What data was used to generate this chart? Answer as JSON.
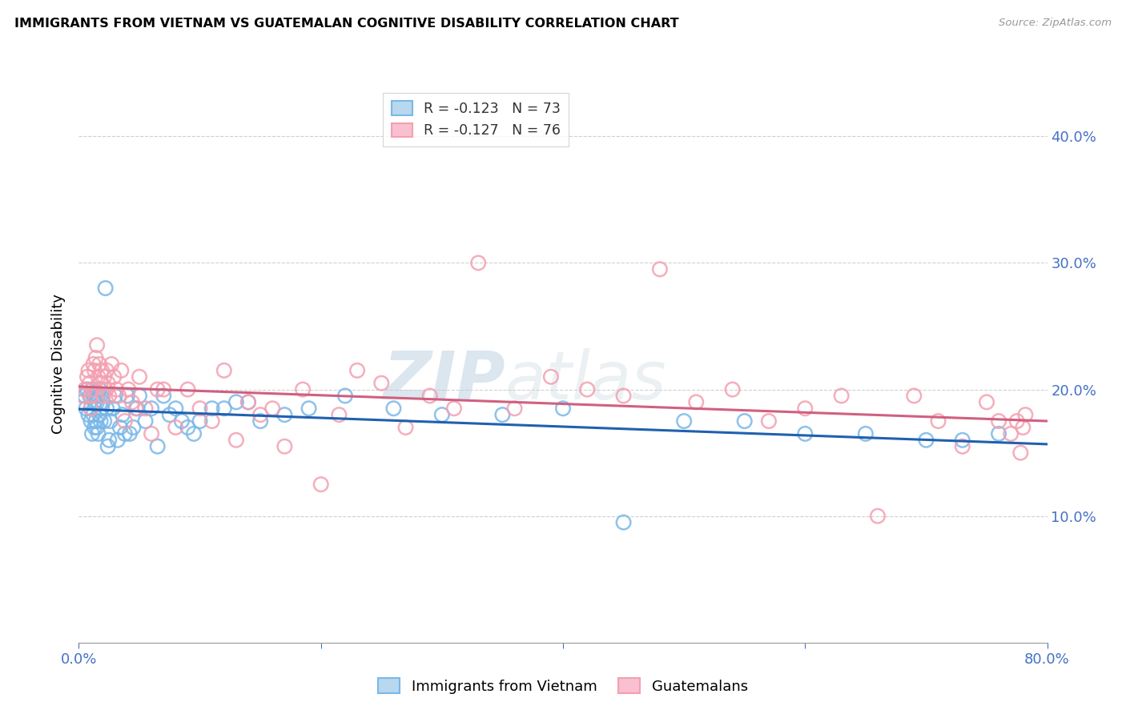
{
  "title": "IMMIGRANTS FROM VIETNAM VS GUATEMALAN COGNITIVE DISABILITY CORRELATION CHART",
  "source": "Source: ZipAtlas.com",
  "ylabel": "Cognitive Disability",
  "series1_label": "Immigrants from Vietnam",
  "series2_label": "Guatemalans",
  "series1_color": "#7ab8e8",
  "series2_color": "#f4a0b0",
  "series1_edge_color": "#5a9fd4",
  "series2_edge_color": "#e87090",
  "series1_line_color": "#2060b0",
  "series2_line_color": "#d06080",
  "watermark_zip": "ZIP",
  "watermark_atlas": "atlas",
  "background_color": "#ffffff",
  "grid_color": "#d0d0d0",
  "tick_color": "#4472c4",
  "xlim": [
    0.0,
    0.8
  ],
  "ylim": [
    0.0,
    0.44
  ],
  "ytick_vals": [
    0.1,
    0.2,
    0.3,
    0.4
  ],
  "xtick_vals": [
    0.0,
    0.2,
    0.4,
    0.6,
    0.8
  ],
  "legend_line1": "R = -0.123   N = 73",
  "legend_line2": "R = -0.127   N = 76",
  "series1_x": [
    0.003,
    0.005,
    0.006,
    0.007,
    0.008,
    0.009,
    0.01,
    0.01,
    0.011,
    0.011,
    0.012,
    0.012,
    0.013,
    0.013,
    0.014,
    0.014,
    0.015,
    0.015,
    0.016,
    0.016,
    0.017,
    0.017,
    0.018,
    0.018,
    0.019,
    0.02,
    0.021,
    0.022,
    0.023,
    0.024,
    0.025,
    0.026,
    0.028,
    0.03,
    0.032,
    0.034,
    0.036,
    0.038,
    0.04,
    0.042,
    0.045,
    0.048,
    0.05,
    0.055,
    0.06,
    0.065,
    0.07,
    0.075,
    0.08,
    0.085,
    0.09,
    0.095,
    0.1,
    0.11,
    0.12,
    0.13,
    0.14,
    0.15,
    0.17,
    0.19,
    0.22,
    0.26,
    0.3,
    0.35,
    0.4,
    0.45,
    0.5,
    0.55,
    0.6,
    0.65,
    0.7,
    0.73,
    0.76
  ],
  "series1_y": [
    0.19,
    0.195,
    0.185,
    0.2,
    0.18,
    0.195,
    0.185,
    0.175,
    0.2,
    0.165,
    0.195,
    0.18,
    0.19,
    0.17,
    0.195,
    0.175,
    0.19,
    0.17,
    0.195,
    0.165,
    0.2,
    0.18,
    0.195,
    0.175,
    0.185,
    0.19,
    0.175,
    0.28,
    0.185,
    0.155,
    0.16,
    0.175,
    0.185,
    0.195,
    0.16,
    0.17,
    0.18,
    0.165,
    0.195,
    0.165,
    0.17,
    0.185,
    0.195,
    0.175,
    0.185,
    0.155,
    0.195,
    0.18,
    0.185,
    0.175,
    0.17,
    0.165,
    0.175,
    0.185,
    0.185,
    0.19,
    0.19,
    0.175,
    0.18,
    0.185,
    0.195,
    0.185,
    0.18,
    0.18,
    0.185,
    0.095,
    0.175,
    0.175,
    0.165,
    0.165,
    0.16,
    0.16,
    0.165
  ],
  "series2_x": [
    0.003,
    0.005,
    0.007,
    0.008,
    0.009,
    0.01,
    0.01,
    0.011,
    0.012,
    0.013,
    0.014,
    0.015,
    0.016,
    0.017,
    0.018,
    0.019,
    0.02,
    0.021,
    0.022,
    0.023,
    0.024,
    0.025,
    0.027,
    0.029,
    0.031,
    0.033,
    0.035,
    0.038,
    0.041,
    0.044,
    0.047,
    0.05,
    0.055,
    0.06,
    0.065,
    0.07,
    0.08,
    0.09,
    0.1,
    0.11,
    0.12,
    0.13,
    0.14,
    0.15,
    0.16,
    0.17,
    0.185,
    0.2,
    0.215,
    0.23,
    0.25,
    0.27,
    0.29,
    0.31,
    0.33,
    0.36,
    0.39,
    0.42,
    0.45,
    0.48,
    0.51,
    0.54,
    0.57,
    0.6,
    0.63,
    0.66,
    0.69,
    0.71,
    0.73,
    0.75,
    0.76,
    0.77,
    0.775,
    0.778,
    0.78,
    0.782
  ],
  "series2_y": [
    0.195,
    0.2,
    0.21,
    0.215,
    0.205,
    0.195,
    0.185,
    0.2,
    0.22,
    0.215,
    0.225,
    0.235,
    0.21,
    0.22,
    0.205,
    0.215,
    0.195,
    0.21,
    0.2,
    0.215,
    0.205,
    0.195,
    0.22,
    0.21,
    0.2,
    0.195,
    0.215,
    0.175,
    0.2,
    0.19,
    0.185,
    0.21,
    0.185,
    0.165,
    0.2,
    0.2,
    0.17,
    0.2,
    0.185,
    0.175,
    0.215,
    0.16,
    0.19,
    0.18,
    0.185,
    0.155,
    0.2,
    0.125,
    0.18,
    0.215,
    0.205,
    0.17,
    0.195,
    0.185,
    0.3,
    0.185,
    0.21,
    0.2,
    0.195,
    0.295,
    0.19,
    0.2,
    0.175,
    0.185,
    0.195,
    0.1,
    0.195,
    0.175,
    0.155,
    0.19,
    0.175,
    0.165,
    0.175,
    0.15,
    0.17,
    0.18
  ]
}
